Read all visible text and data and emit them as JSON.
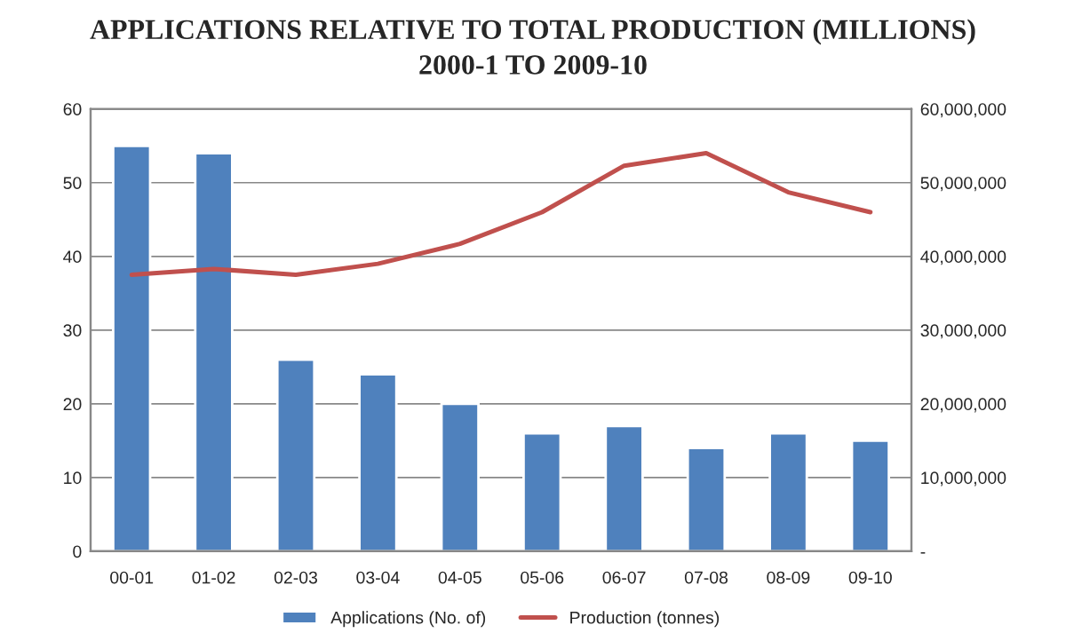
{
  "chart_data": {
    "type": "bar",
    "title": "APPLICATIONS RELATIVE TO TOTAL PRODUCTION (MILLIONS)",
    "subtitle": "2000-1 TO 2009-10",
    "categories": [
      "00-01",
      "01-02",
      "02-03",
      "03-04",
      "04-05",
      "05-06",
      "06-07",
      "07-08",
      "08-09",
      "09-10"
    ],
    "series": [
      {
        "name": "Applications (No. of)",
        "color": "#4f81bd",
        "values": [
          55,
          54,
          26,
          24,
          20,
          16,
          17,
          14,
          16,
          15
        ]
      },
      {
        "name": "Production (tonnes)",
        "type": "line",
        "axis": "y2",
        "color": "#c0504d",
        "values": [
          37500000,
          38300000,
          37500000,
          39000000,
          41700000,
          46000000,
          52300000,
          54000000,
          48700000,
          46000000
        ]
      }
    ],
    "ylim": [
      0,
      60
    ],
    "yticks": [
      0,
      10,
      20,
      30,
      40,
      50,
      60
    ],
    "y2lim": [
      0,
      60000000
    ],
    "y2ticks": [
      {
        "value": 0,
        "label": "-"
      },
      {
        "value": 10000000,
        "label": "10,000,000"
      },
      {
        "value": 20000000,
        "label": "20,000,000"
      },
      {
        "value": 30000000,
        "label": "30,000,000"
      },
      {
        "value": 40000000,
        "label": "40,000,000"
      },
      {
        "value": 50000000,
        "label": "50,000,000"
      },
      {
        "value": 60000000,
        "label": "60,000,000"
      }
    ],
    "grid": "y",
    "legend": "bottom",
    "marker": "none",
    "line_style": "solid"
  }
}
